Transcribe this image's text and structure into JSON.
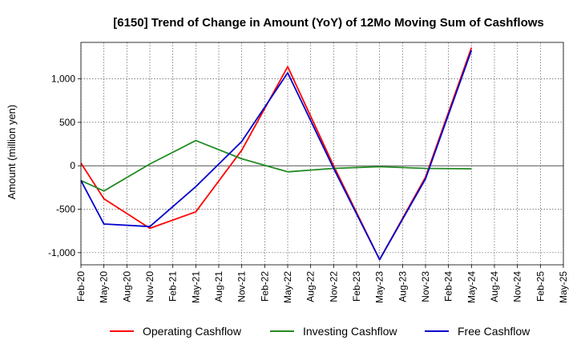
{
  "chart_data": {
    "type": "line",
    "title": "[6150]  Trend of Change in Amount (YoY) of 12Mo Moving Sum of Cashflows",
    "xlabel": "",
    "ylabel": "Amount (million yen)",
    "categories": [
      "Feb-20",
      "May-20",
      "Aug-20",
      "Nov-20",
      "Feb-21",
      "May-21",
      "Aug-21",
      "Nov-21",
      "Feb-22",
      "May-22",
      "Aug-22",
      "Nov-22",
      "Feb-23",
      "May-23",
      "Aug-23",
      "Nov-23",
      "Feb-24",
      "May-24",
      "Aug-24",
      "Nov-24",
      "Feb-25",
      "May-25"
    ],
    "yticks": [
      -1000,
      -500,
      0,
      500,
      1000
    ],
    "ytick_labels": [
      "-1,000",
      "-500",
      "0",
      "500",
      "1,000"
    ],
    "ylim": [
      -1140,
      1420
    ],
    "grid": true,
    "legend_position": "bottom",
    "series": [
      {
        "name": "Operating Cashflow",
        "color": "#ff0000",
        "values": [
          30,
          -380,
          null,
          -720,
          null,
          -530,
          null,
          180,
          null,
          1140,
          null,
          0,
          null,
          -1080,
          null,
          -130,
          null,
          1360,
          null,
          null,
          null,
          null
        ]
      },
      {
        "name": "Investing Cashflow",
        "color": "#228b22",
        "values": [
          -170,
          -290,
          null,
          20,
          null,
          290,
          null,
          80,
          null,
          -70,
          null,
          -30,
          null,
          -10,
          null,
          -30,
          null,
          -35,
          null,
          null,
          null,
          null
        ]
      },
      {
        "name": "Free Cashflow",
        "color": "#0000cd",
        "values": [
          -170,
          -670,
          null,
          -700,
          null,
          -240,
          null,
          280,
          null,
          1070,
          null,
          -30,
          null,
          -1080,
          null,
          -150,
          null,
          1330,
          null,
          null,
          null,
          null
        ]
      }
    ]
  }
}
